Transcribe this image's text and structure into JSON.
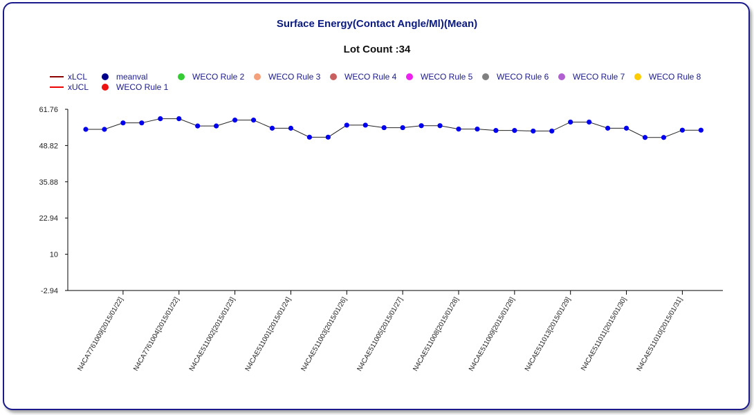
{
  "chart_data": {
    "type": "line",
    "title": "Surface Energy(Contact Angle/Ml)(Mean)",
    "subtitle": "Lot Count :34",
    "ylim": [
      -2.94,
      61.76
    ],
    "yticks": [
      "61.76",
      "48.82",
      "35.88",
      "22.94",
      "10",
      "-2.94"
    ],
    "ytick_values": [
      61.76,
      48.82,
      35.88,
      22.94,
      10,
      -2.94
    ],
    "x_tick_labels": [
      "N4CA7761009[2015/01/22]",
      "N4CA7761004[2015/01/22]",
      "N4CAE511002[2015/01/23]",
      "N4CAE511001[2015/01/24]",
      "N4CAE511003[2015/01/26]",
      "N4CAE511005[2015/01/27]",
      "N4CAE511008[2015/01/28]",
      "N4CAE511009[2015/01/28]",
      "N4CAE511013[2015/01/29]",
      "N4CAE511011[2015/01/30]",
      "N4CAE511010[2015/01/31]"
    ],
    "series": [
      {
        "name": "meanval",
        "color": "#0000ee",
        "values": [
          54.6,
          54.6,
          56.9,
          56.9,
          58.4,
          58.4,
          55.8,
          55.8,
          57.9,
          57.9,
          55.0,
          55.0,
          51.8,
          51.8,
          56.1,
          56.1,
          55.2,
          55.2,
          55.9,
          55.9,
          54.7,
          54.7,
          54.2,
          54.2,
          54.0,
          54.0,
          57.2,
          57.2,
          55.0,
          55.0,
          51.7,
          51.7,
          54.3,
          54.3
        ]
      }
    ],
    "legend": [
      {
        "label": "xLCL",
        "kind": "line",
        "color": "#8b0000"
      },
      {
        "label": "xUCL",
        "kind": "line",
        "color": "#ee0000"
      },
      {
        "label": "meanval",
        "kind": "dot",
        "color": "#00008b"
      },
      {
        "label": "WECO Rule 1",
        "kind": "dot",
        "color": "#ee1111"
      },
      {
        "label": "WECO Rule 2",
        "kind": "dot",
        "color": "#33cc33"
      },
      {
        "label": "WECO Rule 3",
        "kind": "dot",
        "color": "#f4a07a"
      },
      {
        "label": "WECO Rule 4",
        "kind": "dot",
        "color": "#c86060"
      },
      {
        "label": "WECO Rule 5",
        "kind": "dot",
        "color": "#ee22ee"
      },
      {
        "label": "WECO Rule 6",
        "kind": "dot",
        "color": "#808080"
      },
      {
        "label": "WECO Rule 7",
        "kind": "dot",
        "color": "#b060d0"
      },
      {
        "label": "WECO Rule 8",
        "kind": "dot",
        "color": "#ffcc00"
      }
    ],
    "legend_position": "top-left",
    "grid": false
  }
}
